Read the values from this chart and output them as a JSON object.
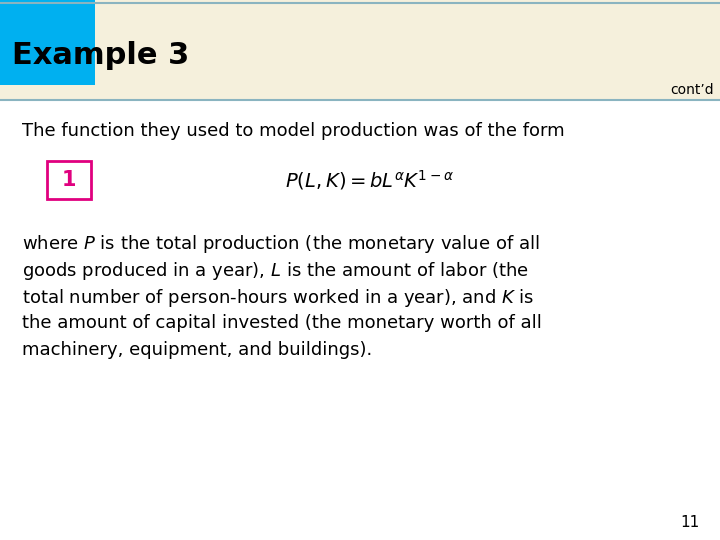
{
  "title": "Example 3",
  "contd": "cont’d",
  "header_bg": "#f5f0dc",
  "header_blue_sq": "#00b0f0",
  "header_line_color": "#8ab4c0",
  "title_color": "#000000",
  "title_fontsize": 22,
  "contd_fontsize": 10,
  "contd_color": "#000000",
  "line1": "The function they used to model production was of the form",
  "line1_fontsize": 13,
  "label_box_color": "#e0007f",
  "label_text": "1",
  "formula": "$P(L, K) = bL^{\\alpha}K^{1-\\alpha}$",
  "formula_fontsize": 14,
  "body_text": [
    "where $P$ is the total production (the monetary value of all",
    "goods produced in a year), $L$ is the amount of labor (the",
    "total number of person-hours worked in a year), and $K$ is",
    "the amount of capital invested (the monetary worth of all",
    "machinery, equipment, and buildings)."
  ],
  "body_fontsize": 13,
  "page_number": "11",
  "page_number_fontsize": 11,
  "bg_color": "#ffffff"
}
